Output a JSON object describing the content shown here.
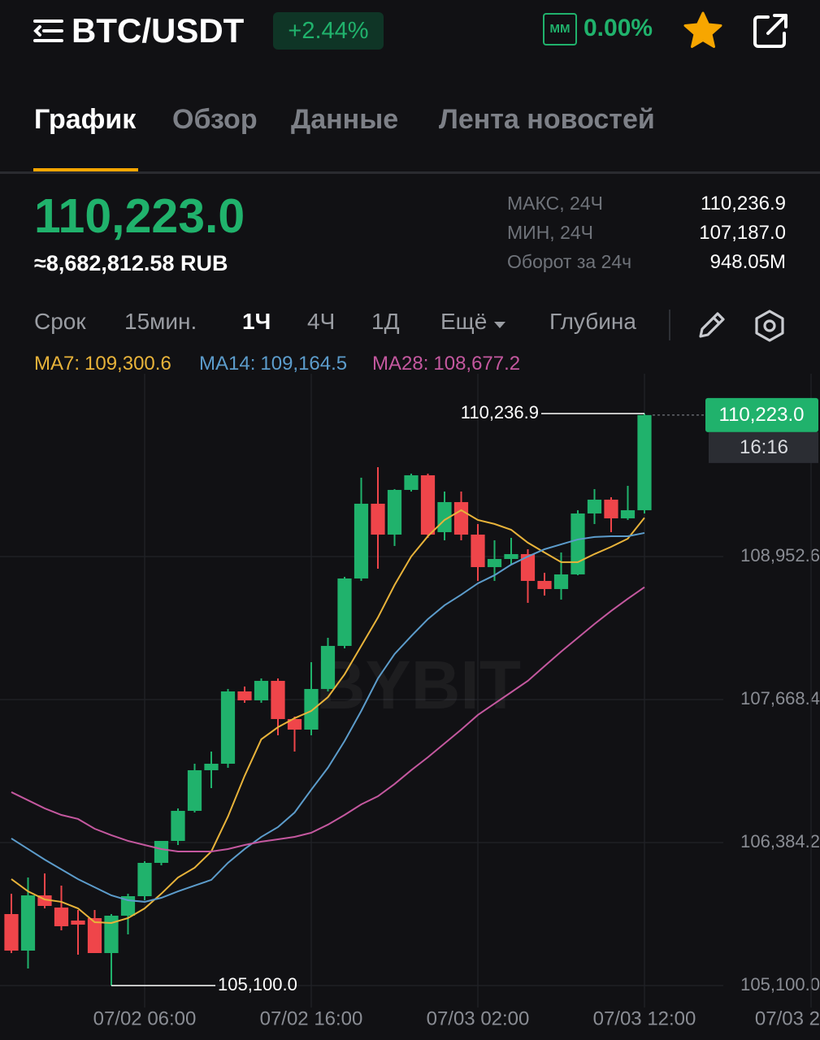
{
  "header": {
    "title": "BTC/USDT",
    "change": "+2.44%",
    "mm_badge": "ММ",
    "mm_value": "0.00%"
  },
  "tabs": [
    "График",
    "Обзор",
    "Данные",
    "Лента новостей"
  ],
  "price": {
    "last": "110,223.0",
    "fiat": "≈8,682,812.58 RUB"
  },
  "stats": [
    {
      "label": "МАКС, 24Ч",
      "value": "110,236.9"
    },
    {
      "label": "МИН, 24Ч",
      "value": "107,187.0"
    },
    {
      "label": "Оборот за 24ч",
      "value": "948.05M"
    }
  ],
  "intervals": [
    "Срок",
    "15мин.",
    "1Ч",
    "4Ч",
    "1Д",
    "Ещё",
    "Глубина"
  ],
  "chart_data": {
    "type": "candlestick",
    "watermark": "BYBIT",
    "up_color": "#20b26c",
    "down_color": "#ef454a",
    "categories": [
      null,
      null,
      null,
      null,
      null,
      null,
      null,
      null,
      "07/02 06:00",
      null,
      null,
      null,
      null,
      null,
      null,
      null,
      null,
      null,
      "07/02 16:00",
      null,
      null,
      null,
      null,
      null,
      null,
      null,
      null,
      null,
      "07/03 02:00",
      null,
      null,
      null,
      null,
      null,
      null,
      null,
      null,
      null,
      "07/03 12:00",
      null,
      null,
      null,
      null,
      null,
      null,
      null,
      null,
      null,
      "07/03 2"
    ],
    "open": [
      105742.1,
      105413.8,
      105909.9,
      105800.5,
      105683.7,
      105705.6,
      105391.9,
      105727.5,
      105902.6,
      106201.8,
      106398.8,
      106668.8,
      107033.6,
      107092.0,
      107741.4,
      107661.1,
      107836.2,
      107493.3,
      107398.4,
      107763.3,
      108150.0,
      108755.6,
      109426.9,
      109149.6,
      109550.9,
      109682.3,
      109171.5,
      109441.5,
      109149.6,
      108857.7,
      108930.7,
      108974.5,
      108733.7,
      108660.7,
      108792.1,
      109339.3,
      109463.4,
      109295.5,
      109368.5,
      null,
      null,
      null,
      null,
      null,
      null,
      null,
      null,
      null,
      null
    ],
    "high": [
      105924.5,
      106070.4,
      106106.9,
      105997.5,
      105778.6,
      105778.6,
      105742.1,
      105924.5,
      106216.4,
      106398.8,
      106690.7,
      107092.0,
      107201.4,
      107763.3,
      107785.2,
      107858.1,
      107858.1,
      107515.2,
      108004.0,
      108222.9,
      108770.2,
      109660.4,
      109755.2,
      109558.2,
      109696.9,
      109696.9,
      109536.3,
      109536.3,
      109244.5,
      109098.5,
      109120.4,
      109018.3,
      108806.7,
      108989.1,
      109368.5,
      109558.2,
      109485.3,
      109587.4,
      110236.9,
      null,
      null,
      null,
      null,
      null,
      null,
      null,
      null,
      null,
      null
    ],
    "low": [
      105391.9,
      105253.2,
      105793.2,
      105596.2,
      105377.3,
      105391.9,
      105100.0,
      105559.7,
      105866.1,
      106179.9,
      106362.3,
      106654.2,
      106873.1,
      107055.5,
      107639.2,
      107639.2,
      107347.4,
      107201.4,
      107347.4,
      107741.4,
      108128.1,
      108733.7,
      108843.2,
      109047.5,
      109536.3,
      109120.4,
      109098.5,
      109098.5,
      108733.7,
      108733.7,
      108879.6,
      108536.7,
      108602.4,
      108565.9,
      108784.8,
      109244.5,
      109171.5,
      109281.0,
      109339.3,
      null,
      null,
      null,
      null,
      null,
      null,
      null,
      null,
      null,
      null
    ],
    "close": [
      105413.8,
      105909.9,
      105815.1,
      105632.7,
      105647.2,
      105391.9,
      105727.5,
      105902.6,
      106201.8,
      106398.8,
      106668.8,
      107033.6,
      107092.0,
      107741.4,
      107661.1,
      107836.2,
      107493.3,
      107398.4,
      107763.3,
      108150.0,
      108755.6,
      109426.9,
      109149.6,
      109550.9,
      109682.3,
      109149.6,
      109441.5,
      109149.6,
      108857.7,
      108930.7,
      108974.5,
      108733.7,
      108660.7,
      108792.1,
      109339.3,
      109463.4,
      109295.5,
      109368.5,
      110223.0,
      null,
      null,
      null,
      null,
      null,
      null,
      null,
      null,
      null,
      null
    ],
    "ma": [
      {
        "name": "MA7:",
        "color": "#e8b33a",
        "last_label": "109,300.6",
        "values": [
          106056,
          105946,
          105873,
          105852,
          105793,
          105669,
          105662,
          105706,
          105793,
          105925,
          106070,
          106158,
          106304,
          106618,
          106983,
          107311,
          107420,
          107501,
          107566,
          107690,
          107895,
          108150,
          108405,
          108697,
          108953,
          109135,
          109281,
          109369,
          109281,
          109245,
          109193,
          109077,
          108989,
          108902,
          108902,
          108975,
          109040,
          109113,
          109300.6,
          null,
          null,
          null,
          null,
          null,
          null,
          null,
          null,
          null,
          null
        ]
      },
      {
        "name": "MA14:",
        "color": "#5c9ccb",
        "last_label": "109,164.5",
        "values": [
          106421,
          106326,
          106231,
          106143,
          106056,
          105983,
          105910,
          105866,
          105852,
          105888,
          105946,
          105998,
          106049,
          106202,
          106326,
          106435,
          106523,
          106654,
          106859,
          107056,
          107296,
          107566,
          107858,
          108077,
          108238,
          108391,
          108515,
          108610,
          108712,
          108785,
          108880,
          108953,
          109018,
          109062,
          109106,
          109128,
          109135,
          109135,
          109164.5,
          null,
          null,
          null,
          null,
          null,
          null,
          null,
          null,
          null,
          null
        ]
      },
      {
        "name": "MA28:",
        "color": "#c4589f",
        "last_label": "108,677.2",
        "values": [
          106837,
          106764,
          106691,
          106632,
          106596,
          106508,
          106450,
          106399,
          106362,
          106326,
          106304,
          106304,
          106304,
          106326,
          106362,
          106392,
          106413,
          106435,
          106472,
          106545,
          106632,
          106727,
          106800,
          106910,
          107034,
          107150,
          107274,
          107398,
          107530,
          107632,
          107734,
          107836,
          107968,
          108099,
          108223,
          108347,
          108464,
          108573,
          108677.2,
          null,
          null,
          null,
          null,
          null,
          null,
          null,
          null,
          null,
          null
        ]
      }
    ],
    "ylim": [
      104903,
      110594
    ],
    "yticks": [
      {
        "value": 105100.0,
        "label": "105,100.0"
      },
      {
        "value": 106384.2,
        "label": "106,384.2"
      },
      {
        "value": 107668.4,
        "label": "107,668.4"
      },
      {
        "value": 108952.6,
        "label": "108,952.6"
      }
    ],
    "grid": true,
    "high_marker": {
      "value": 110236.9,
      "label": "110,236.9"
    },
    "low_marker": {
      "value": 105100.0,
      "label": "105,100.0"
    },
    "last_price": {
      "value": 110223.0,
      "label": "110,223.0"
    },
    "countdown": "16:16"
  }
}
